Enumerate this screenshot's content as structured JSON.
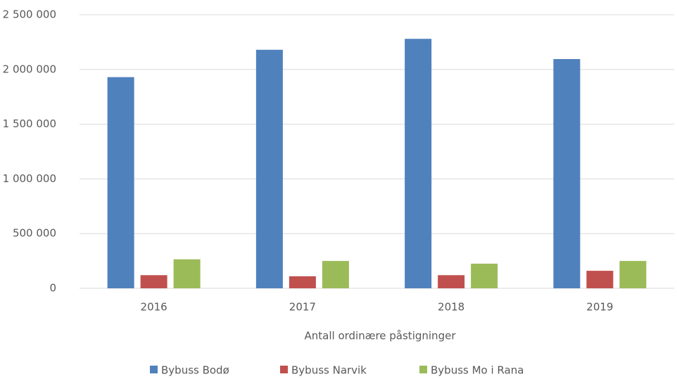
{
  "chart_data": {
    "type": "bar",
    "x_label": "Antall ordinære påstigninger",
    "categories": [
      "2016",
      "2017",
      "2018",
      "2019"
    ],
    "series": [
      {
        "name": "Bybuss Bodø",
        "color": "#4f81bd",
        "values": [
          1930000,
          2180000,
          2280000,
          2095000
        ]
      },
      {
        "name": "Bybuss Narvik",
        "color": "#c0504d",
        "values": [
          120000,
          110000,
          120000,
          160000
        ]
      },
      {
        "name": "Bybuss Mo i Rana",
        "color": "#9bbb59",
        "values": [
          265000,
          250000,
          225000,
          250000
        ]
      }
    ],
    "ylim": [
      0,
      2500000
    ],
    "yticks": [
      0,
      {
        "value": 500000,
        "label": "500 000"
      },
      {
        "value": 1000000,
        "label": "1 000 000"
      },
      {
        "value": 1500000,
        "label": "1 500 000"
      },
      {
        "value": 2000000,
        "label": "2 000 000"
      },
      {
        "value": 2500000,
        "label": "2 500 000"
      }
    ],
    "grid": true,
    "legend": "bottom"
  }
}
